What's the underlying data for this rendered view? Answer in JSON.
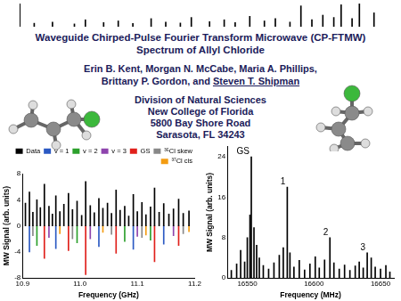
{
  "header": {
    "title": [
      "Waveguide Chirped-Pulse Fourier Transform Microwave (CP-FTMW)",
      "Spectrum of Allyl Chloride"
    ],
    "authors": [
      [
        {
          "text": "Erin B. Kent, Morgan N. McCabe, Maria A. Phillips,"
        }
      ],
      [
        {
          "text": "Brittany P. Gordon, and "
        },
        {
          "text": "Steven T. Shipman",
          "underline": true
        }
      ]
    ],
    "affiliation": [
      "Division of Natural Sciences",
      "New College of Florida",
      "5800 Bay Shore Road",
      "Sarasota, FL 34243"
    ]
  },
  "chart_data": [
    {
      "type": "bar",
      "x": [
        4,
        9,
        15,
        18,
        23,
        27,
        31,
        36,
        40,
        44,
        47,
        52,
        56,
        59,
        63,
        67,
        70,
        74,
        77,
        80,
        83,
        86,
        88,
        91,
        93,
        97
      ],
      "values": [
        0.15,
        0.2,
        0.12,
        0.3,
        0.18,
        0.25,
        0.14,
        0.35,
        0.2,
        0.16,
        0.4,
        0.22,
        0.3,
        0.18,
        0.45,
        0.25,
        0.35,
        0.2,
        0.9,
        0.3,
        0.5,
        0.4,
        0.95,
        0.35,
        1.0,
        0.6
      ],
      "color": "#000000",
      "xlim": [
        0,
        100
      ],
      "ylim": [
        0,
        1
      ],
      "tick_labels": false,
      "grid": false
    },
    {
      "type": "bar",
      "xlabel": "Frequency (GHz)",
      "ylabel": "MW Signal (arb. units)",
      "xlim": [
        10.9,
        11.2
      ],
      "xticks": [
        10.9,
        {
          "value": 11,
          "label": "11.0"
        },
        11.1,
        11.2
      ],
      "ylim": [
        -8,
        8
      ],
      "yticks": [
        -8,
        -4,
        0,
        4,
        8
      ],
      "grid": false,
      "legend": "top",
      "series": [
        {
          "name": "Data",
          "color": "#000000",
          "x": [
            10.905,
            10.912,
            10.918,
            10.925,
            10.931,
            10.938,
            10.946,
            10.952,
            10.958,
            10.965,
            10.972,
            10.98,
            10.987,
            10.995,
            11.003,
            11.01,
            11.018,
            11.025,
            11.033,
            11.04,
            11.048,
            11.055,
            11.063,
            11.07,
            11.078,
            11.085,
            11.093,
            11.1,
            11.108,
            11.115,
            11.123,
            11.13,
            11.138,
            11.146,
            11.155,
            11.163,
            11.172,
            11.18,
            11.19
          ],
          "values": [
            3.5,
            5.2,
            2.1,
            4.0,
            2.8,
            6.4,
            3.0,
            1.8,
            4.6,
            2.2,
            3.3,
            5.0,
            2.5,
            3.8,
            1.6,
            6.8,
            3.1,
            2.0,
            4.2,
            2.7,
            3.5,
            1.9,
            5.5,
            2.4,
            3.0,
            1.5,
            4.8,
            2.2,
            3.6,
            1.7,
            2.9,
            5.8,
            2.1,
            3.4,
            1.8,
            2.6,
            4.1,
            1.9,
            2.3
          ]
        },
        {
          "name": "v = 1",
          "color": "#2b59c3",
          "x": [
            10.912,
            10.958,
            11.033,
            11.093,
            11.146
          ],
          "values": [
            -4.0,
            -3.5,
            -3.2,
            -3.6,
            -2.8
          ]
        },
        {
          "name": "v = 2",
          "color": "#2ca02c",
          "x": [
            10.925,
            10.995,
            11.078,
            11.123
          ],
          "values": [
            -3.0,
            -2.6,
            -2.4,
            -2.2
          ]
        },
        {
          "name": "v = 3",
          "color": "#8e44ad",
          "x": [
            10.946,
            11.018,
            11.1,
            11.163
          ],
          "values": [
            -1.8,
            -2.0,
            -1.6,
            -1.5
          ]
        },
        {
          "name": "GS",
          "color": "#e0201b",
          "x": [
            10.938,
            10.98,
            11.01,
            11.063,
            11.13,
            11.172
          ],
          "values": [
            -5.0,
            -3.8,
            -7.5,
            -4.2,
            -5.5,
            -3.0
          ]
        },
        {
          "name": "³⁵Cl skew",
          "color": "#888888",
          "x": [
            10.918,
            10.987,
            11.055,
            11.108,
            11.18
          ],
          "values": [
            -1.5,
            -2.0,
            -1.3,
            -1.8,
            -1.2
          ]
        },
        {
          "name": "³⁷Cl cis",
          "color": "#f39c12",
          "x": [
            10.965,
            11.04,
            11.115,
            11.19
          ],
          "values": [
            -1.2,
            -1.0,
            -1.4,
            -0.9
          ]
        }
      ]
    },
    {
      "type": "bar",
      "xlabel": "Frequency (MHz)",
      "ylabel": "MW Signal (arb. units)",
      "xlim": [
        16535,
        16660
      ],
      "xticks": [
        16550,
        16600,
        16650
      ],
      "ylim": [
        0,
        26
      ],
      "yticks": [
        0,
        8,
        16,
        24
      ],
      "grid": false,
      "color": "#000000",
      "x": [
        16538,
        16542,
        16545,
        16548,
        16550,
        16552,
        16553,
        16555,
        16557,
        16559,
        16562,
        16566,
        16570,
        16574,
        16577,
        16580,
        16582,
        16585,
        16589,
        16593,
        16597,
        16601,
        16604,
        16608,
        16612,
        16615,
        16619,
        16623,
        16627,
        16631,
        16634,
        16637,
        16640,
        16643,
        16646,
        16650,
        16654,
        16657
      ],
      "values": [
        1.5,
        2.8,
        5.5,
        3.2,
        8.0,
        12.5,
        24.0,
        10.0,
        6.5,
        4.0,
        2.5,
        1.8,
        3.0,
        4.5,
        6.0,
        18.0,
        5.0,
        2.2,
        3.5,
        1.6,
        2.8,
        4.2,
        2.0,
        3.6,
        8.0,
        3.0,
        1.8,
        2.6,
        1.5,
        2.4,
        3.2,
        2.0,
        5.0,
        4.0,
        2.2,
        1.8,
        2.5,
        1.2
      ],
      "annotations": [
        {
          "text": "GS",
          "x": 16553,
          "y": 24.0
        },
        {
          "text": "1",
          "x": 16580,
          "y": 18.0
        },
        {
          "text": "2",
          "x": 16612,
          "y": 8.0
        },
        {
          "text": "3",
          "x": 16640,
          "y": 5.0
        }
      ]
    }
  ]
}
